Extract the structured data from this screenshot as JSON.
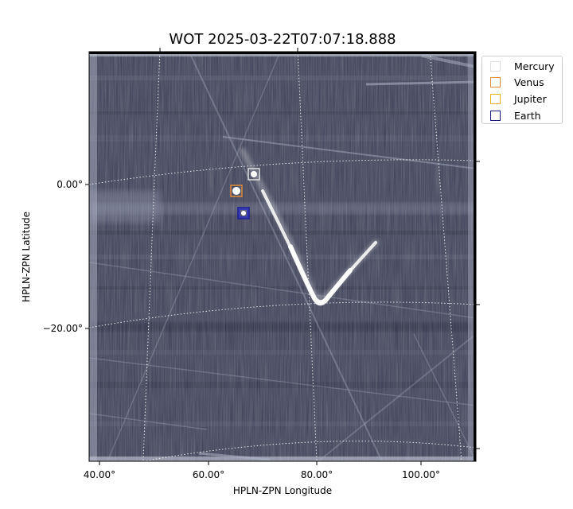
{
  "figure": {
    "title": "WOT 2025-03-22T07:07:18.888"
  },
  "axes": {
    "xlabel": "HPLN-ZPN Longitude",
    "ylabel": "HPLN-ZPN Latitude",
    "x_ticks": [
      "40.00°",
      "60.00°",
      "80.00°",
      "100.00°"
    ],
    "y_ticks": [
      "0.00°",
      "−20.00°"
    ]
  },
  "legend": {
    "items": [
      {
        "label": "Mercury",
        "color": "#e0e0e0"
      },
      {
        "label": "Venus",
        "color": "#e08a3c"
      },
      {
        "label": "Jupiter",
        "color": "#e8b020"
      },
      {
        "label": "Earth",
        "color": "#1a1a7a"
      }
    ]
  },
  "image": {
    "background_color": "#3a3d55",
    "grid_color": "#ffffff",
    "comet_color": "#ffffff"
  }
}
